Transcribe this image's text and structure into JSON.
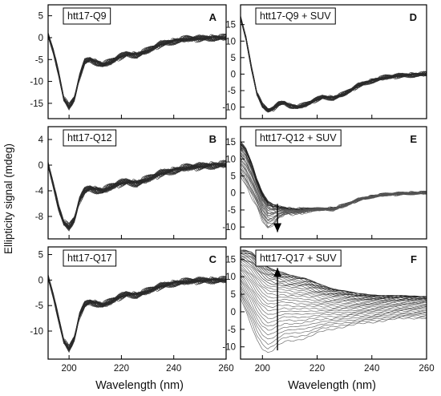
{
  "figure": {
    "ylabel": "Ellipticity signal (mdeg)",
    "xlabel_left": "Wavelength (nm)",
    "xlabel_right": "Wavelength (nm)"
  },
  "chart_data": [
    {
      "panel": "A",
      "type": "line",
      "title": "htt17-Q9",
      "xlim": [
        192,
        260
      ],
      "ylim": [
        -18.5,
        7.5
      ],
      "xticks": [
        200,
        220,
        240,
        260
      ],
      "xtick_labels": [
        "",
        "",
        "",
        ""
      ],
      "yticks": [
        5,
        0,
        -5,
        -10,
        -15
      ],
      "ytick_labels": [
        "5",
        "0",
        "-5",
        "-10",
        "-15"
      ],
      "spectra_count": 30,
      "series": [
        {
          "x": [
            192,
            194,
            196,
            198,
            200,
            202,
            204,
            206,
            208,
            210,
            213,
            216,
            219,
            222,
            226,
            230,
            235,
            240,
            245,
            250,
            255,
            260
          ],
          "y": [
            0.5,
            -3,
            -8,
            -14,
            -15.8,
            -14,
            -9,
            -5.5,
            -5,
            -5.5,
            -6.2,
            -5.5,
            -4.5,
            -3.8,
            -3.9,
            -3,
            -1.5,
            -0.8,
            -0.3,
            -0.2,
            0,
            0
          ]
        }
      ],
      "spread": 0.9
    },
    {
      "panel": "B",
      "type": "line",
      "title": "htt17-Q12",
      "xlim": [
        192,
        260
      ],
      "ylim": [
        -11.5,
        6
      ],
      "xticks": [
        200,
        220,
        240,
        260
      ],
      "xtick_labels": [
        "",
        "",
        "",
        ""
      ],
      "yticks": [
        4,
        0,
        -4,
        -8
      ],
      "ytick_labels": [
        "4",
        "0",
        "-4",
        "-8"
      ],
      "spectra_count": 30,
      "series": [
        {
          "x": [
            192,
            194,
            196,
            198,
            200,
            202,
            204,
            206,
            208,
            210,
            213,
            216,
            219,
            222,
            226,
            230,
            235,
            240,
            245,
            250,
            255,
            260
          ],
          "y": [
            0,
            -3,
            -6.5,
            -9,
            -9.7,
            -8.5,
            -5.5,
            -4,
            -3.6,
            -3.8,
            -4,
            -3.4,
            -2.9,
            -2.6,
            -2.8,
            -2.2,
            -1.3,
            -0.8,
            -0.4,
            -0.2,
            0,
            0.1
          ]
        }
      ],
      "spread": 0.7
    },
    {
      "panel": "C",
      "type": "line",
      "title": "htt17-Q17",
      "xlim": [
        192,
        260
      ],
      "ylim": [
        -15.5,
        6.5
      ],
      "xticks": [
        200,
        220,
        240,
        260
      ],
      "xtick_labels": [
        "200",
        "220",
        "240",
        "260"
      ],
      "yticks": [
        5,
        0,
        -5,
        -10
      ],
      "ytick_labels": [
        "5",
        "0",
        "-5",
        "-10"
      ],
      "spectra_count": 30,
      "series": [
        {
          "x": [
            192,
            194,
            196,
            198,
            200,
            202,
            204,
            206,
            208,
            210,
            213,
            216,
            219,
            222,
            226,
            230,
            235,
            240,
            245,
            250,
            255,
            260
          ],
          "y": [
            0.5,
            -3,
            -7.5,
            -12,
            -13.5,
            -11.5,
            -7,
            -4.8,
            -4.3,
            -4.5,
            -4.9,
            -4.2,
            -3.4,
            -2.8,
            -2.9,
            -2.2,
            -1.2,
            -0.6,
            -0.3,
            -0.1,
            0,
            0
          ]
        }
      ],
      "spread": 0.8
    },
    {
      "panel": "D",
      "type": "line",
      "title": "htt17-Q9 + SUV",
      "xlim": [
        192,
        260
      ],
      "ylim": [
        -13.5,
        21
      ],
      "xticks": [
        200,
        220,
        240,
        260
      ],
      "xtick_labels": [
        "",
        "",
        "",
        ""
      ],
      "yticks": [
        15,
        10,
        5,
        0,
        -5,
        -10
      ],
      "ytick_labels": [
        "15",
        "10",
        "5",
        "0",
        "-5",
        "-10"
      ],
      "spectra_count": 30,
      "series": [
        {
          "x": [
            192,
            194,
            196,
            198,
            200,
            202,
            204,
            206,
            208,
            210,
            213,
            216,
            219,
            222,
            226,
            230,
            235,
            240,
            245,
            250,
            255,
            260
          ],
          "y": [
            17,
            11,
            2,
            -6,
            -9.5,
            -11,
            -10.5,
            -9,
            -8.7,
            -9.5,
            -10,
            -9.2,
            -8,
            -7,
            -7.2,
            -6,
            -3.5,
            -2,
            -1,
            -0.5,
            -0.2,
            0
          ]
        }
      ],
      "spread": 0.9
    },
    {
      "panel": "E",
      "type": "line",
      "title": "htt17-Q12 + SUV",
      "xlim": [
        192,
        260
      ],
      "ylim": [
        -13.5,
        19.5
      ],
      "xticks": [
        200,
        220,
        240,
        260
      ],
      "xtick_labels": [
        "",
        "",
        "",
        ""
      ],
      "yticks": [
        15,
        10,
        5,
        0,
        -5,
        -10
      ],
      "ytick_labels": [
        "15",
        "10",
        "5",
        "0",
        "-5",
        "-10"
      ],
      "spectra_count": 30,
      "series": [
        {
          "x": [
            192,
            194,
            196,
            198,
            200,
            202,
            204,
            206,
            208,
            210,
            213,
            216,
            219,
            222,
            226,
            230,
            235,
            240,
            245,
            250,
            255,
            260
          ],
          "y": [
            15,
            13,
            9,
            4,
            0,
            -2.5,
            -3.5,
            -4,
            -4.3,
            -4.6,
            -4.8,
            -4.7,
            -4.6,
            -4.6,
            -4.5,
            -3.6,
            -2,
            -1,
            -0.5,
            -0.2,
            0,
            0
          ]
        },
        {
          "x": [
            192,
            194,
            196,
            198,
            200,
            202,
            204,
            206,
            208,
            210,
            213,
            216,
            219,
            222,
            226,
            230,
            235,
            240,
            245,
            250,
            255,
            260
          ],
          "y": [
            5,
            2,
            -1,
            -4,
            -8,
            -10.5,
            -9.5,
            -7.5,
            -6.5,
            -6.2,
            -6,
            -5.6,
            -5.2,
            -5,
            -4.8,
            -3.8,
            -2,
            -1,
            -0.5,
            -0.2,
            0,
            0
          ]
        }
      ],
      "spread": 0.6,
      "arrow": {
        "x": 205.5,
        "from": -3.2,
        "to": -11.5
      }
    },
    {
      "panel": "F",
      "type": "line",
      "title": "htt17-Q17 + SUV",
      "xlim": [
        192,
        260
      ],
      "ylim": [
        -13.5,
        18.5
      ],
      "xticks": [
        200,
        220,
        240,
        260
      ],
      "xtick_labels": [
        "200",
        "220",
        "240",
        "260"
      ],
      "yticks": [
        15,
        10,
        5,
        0,
        -5,
        -10
      ],
      "ytick_labels": [
        "15",
        "10",
        "5",
        "0",
        "-5",
        "-10"
      ],
      "spectra_count": 30,
      "series": [
        {
          "x": [
            192,
            194,
            196,
            198,
            200,
            202,
            204,
            206,
            208,
            210,
            213,
            216,
            219,
            222,
            226,
            230,
            235,
            240,
            245,
            250,
            255,
            260
          ],
          "y": [
            17.5,
            17.5,
            17,
            15.5,
            14,
            12.8,
            12,
            11.5,
            11,
            10.5,
            10,
            9.5,
            8.5,
            7.5,
            6.5,
            6,
            5.2,
            4.8,
            4.6,
            4.6,
            4.5,
            4.3
          ]
        },
        {
          "x": [
            192,
            194,
            196,
            198,
            200,
            202,
            204,
            206,
            208,
            210,
            213,
            216,
            219,
            222,
            226,
            230,
            235,
            240,
            245,
            250,
            255,
            260
          ],
          "y": [
            4,
            0,
            -4,
            -8,
            -10.5,
            -11.8,
            -11,
            -9.5,
            -8.5,
            -8.2,
            -8,
            -7.5,
            -6.5,
            -5.5,
            -4.8,
            -4.3,
            -3.5,
            -3,
            -2.5,
            -2,
            -1.8,
            -1.8
          ]
        }
      ],
      "spread": 0.3,
      "arrow": {
        "x": 205.5,
        "from": -11,
        "to": 12.5
      }
    }
  ]
}
